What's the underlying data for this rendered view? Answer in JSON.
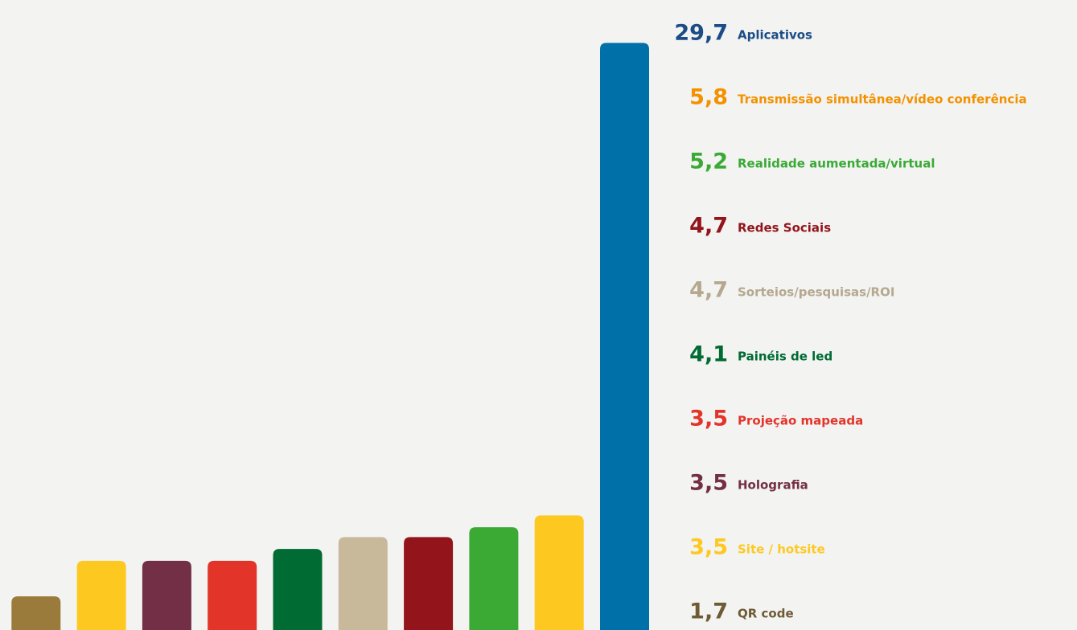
{
  "chart_data": {
    "type": "bar",
    "categories": [
      "Aplicativos",
      "Transmissão simultânea/vídeo conferência",
      "Realidade aumentada/virtual",
      "Redes Sociais",
      "Sorteios/pesquisas/ROI",
      "Painéis de led",
      "Projeção mapeada",
      "Holografia",
      "Site / hotsite",
      "QR code"
    ],
    "values": [
      29.7,
      5.8,
      5.2,
      4.7,
      4.7,
      4.1,
      3.5,
      3.5,
      3.5,
      1.7
    ],
    "value_labels": [
      "29,7",
      "5,8",
      "5,2",
      "4,7",
      "4,7",
      "4,1",
      "3,5",
      "3,5",
      "3,5",
      "1,7"
    ],
    "colors": [
      "#0071a8",
      "#fdc921",
      "#3aaa35",
      "#93141a",
      "#c9b99b",
      "#006b33",
      "#e3342a",
      "#722f45",
      "#fdc921",
      "#9b7b3c"
    ],
    "label_colors": [
      "#1b4c86",
      "#f39200",
      "#3aaa35",
      "#93141a",
      "#b5a88f",
      "#006b33",
      "#e3342a",
      "#722f45",
      "#fdc921",
      "#6e5a33"
    ]
  }
}
